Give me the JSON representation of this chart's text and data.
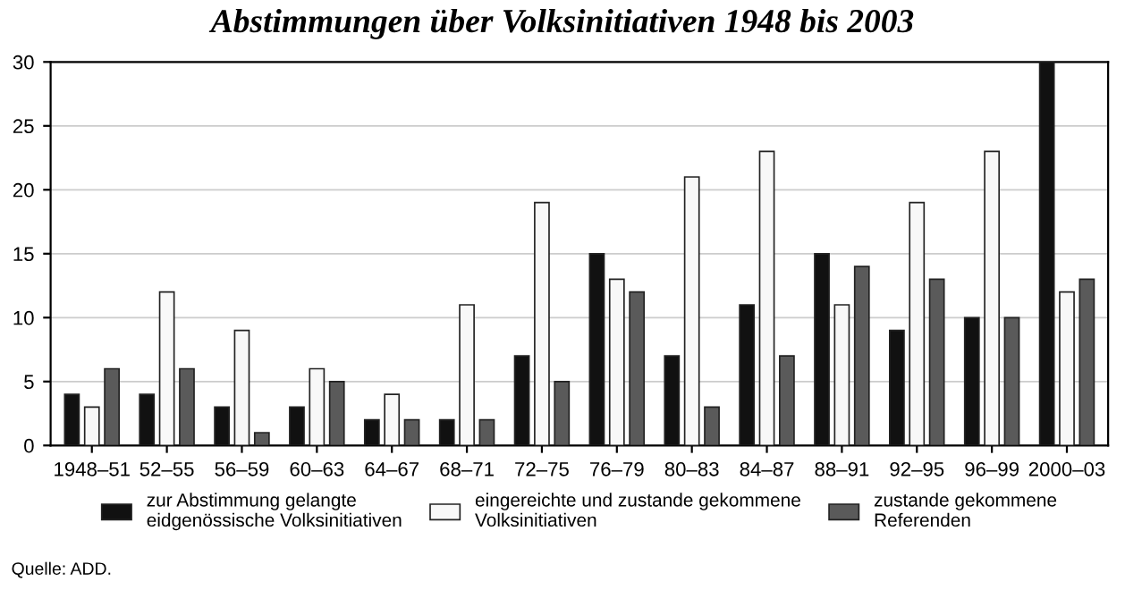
{
  "chart_data": {
    "type": "bar",
    "title": "Abstimmungen über Volksinitiativen 1948 bis 2003",
    "categories": [
      "1948–51",
      "52–55",
      "56–59",
      "60–63",
      "64–67",
      "68–71",
      "72–75",
      "76–79",
      "80–83",
      "84–87",
      "88–91",
      "92–95",
      "96–99",
      "2000–03"
    ],
    "series": [
      {
        "name": "zur Abstimmung gelangte\neidgenössische Volksinitiativen",
        "color": "#111111",
        "values": [
          4,
          4,
          3,
          3,
          2,
          2,
          7,
          15,
          7,
          11,
          15,
          9,
          10,
          30
        ]
      },
      {
        "name": "eingereichte und zustande gekommene\nVolksinitiativen",
        "color": "#f8f8f8",
        "values": [
          3,
          12,
          9,
          6,
          4,
          11,
          19,
          13,
          21,
          23,
          11,
          19,
          23,
          12
        ]
      },
      {
        "name": "zustande gekommene\nReferenden",
        "color": "#5a5a5a",
        "values": [
          6,
          6,
          1,
          5,
          2,
          2,
          5,
          12,
          3,
          7,
          14,
          13,
          10,
          13
        ]
      }
    ],
    "ylim": [
      0,
      30
    ],
    "yticks": [
      0,
      5,
      10,
      15,
      20,
      25,
      30
    ],
    "grid": "y",
    "legend": "bottom",
    "annotations": [
      "Quelle: ADD."
    ]
  }
}
